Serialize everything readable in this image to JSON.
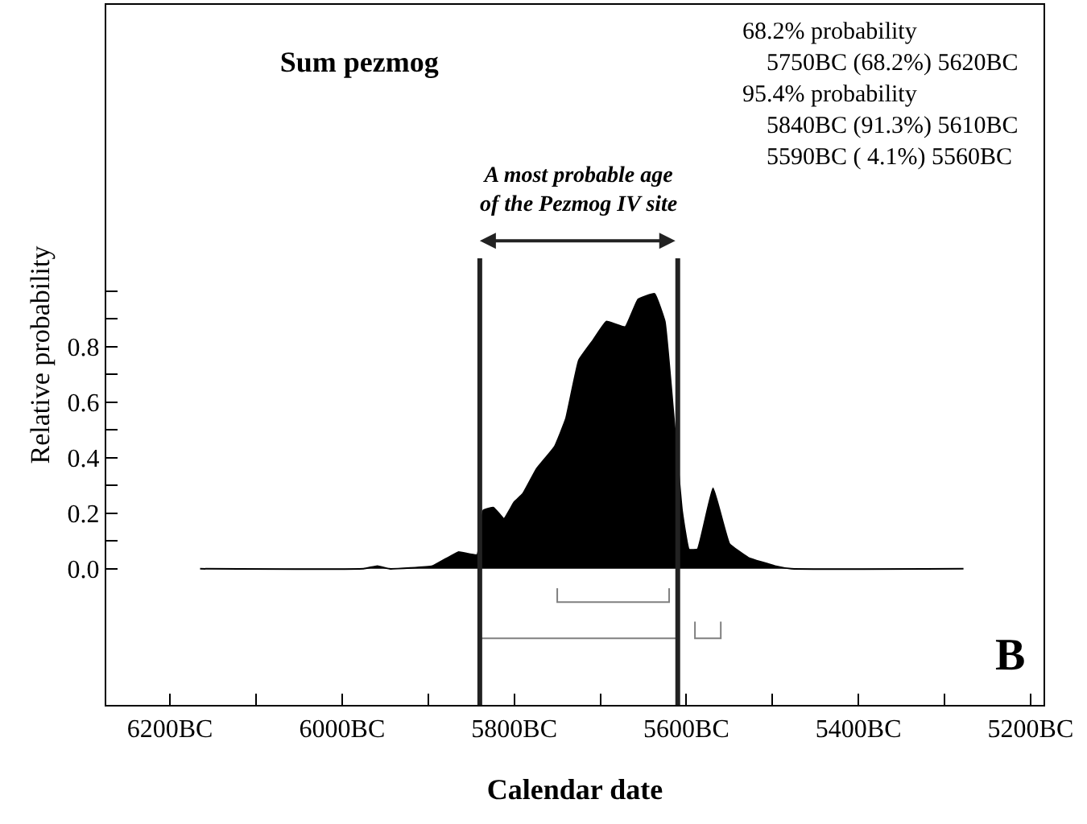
{
  "chart_data": {
    "type": "area",
    "title": "Sum pezmog",
    "xlabel": "Calendar date",
    "ylabel": "Relative probability",
    "xlim": [
      -6274,
      -5185
    ],
    "ylim": [
      -0.49,
      2.03
    ],
    "xticks": [
      {
        "value": -6200,
        "label": "6200BC"
      },
      {
        "value": -6100,
        "label": null
      },
      {
        "value": -6000,
        "label": "6000BC"
      },
      {
        "value": -5900,
        "label": null
      },
      {
        "value": -5800,
        "label": "5800BC"
      },
      {
        "value": -5700,
        "label": null
      },
      {
        "value": -5600,
        "label": "5600BC"
      },
      {
        "value": -5500,
        "label": null
      },
      {
        "value": -5400,
        "label": "5400BC"
      },
      {
        "value": -5300,
        "label": null
      },
      {
        "value": -5200,
        "label": "5200BC"
      }
    ],
    "yticks": [
      {
        "value": 0,
        "label": "0.0"
      },
      {
        "value": 0.1,
        "label": null
      },
      {
        "value": 0.2,
        "label": "0.2"
      },
      {
        "value": 0.3,
        "label": null
      },
      {
        "value": 0.4,
        "label": "0.4"
      },
      {
        "value": 0.5,
        "label": null
      },
      {
        "value": 0.6,
        "label": "0.6"
      },
      {
        "value": 0.7,
        "label": null
      },
      {
        "value": 0.8,
        "label": "0.8"
      },
      {
        "value": 0.9,
        "label": null
      },
      {
        "value": 1.0,
        "label": null
      }
    ],
    "series": [
      {
        "color": "#000000",
        "x": [
          -6165,
          -5975,
          -5959,
          -5945,
          -5895,
          -5865,
          -5843,
          -5836,
          -5824,
          -5812,
          -5800,
          -5790,
          -5774,
          -5753,
          -5740,
          -5725,
          -5709,
          -5693,
          -5671,
          -5656,
          -5637,
          -5625,
          -5615,
          -5605,
          -5597,
          -5587,
          -5569,
          -5550,
          -5528,
          -5497,
          -5478,
          -5278
        ],
        "values": [
          0,
          0,
          0.01,
          0,
          0.01,
          0.06,
          0.05,
          0.21,
          0.22,
          0.18,
          0.24,
          0.27,
          0.36,
          0.44,
          0.54,
          0.75,
          0.82,
          0.89,
          0.87,
          0.97,
          0.99,
          0.89,
          0.56,
          0.21,
          0.07,
          0.07,
          0.29,
          0.09,
          0.04,
          0.01,
          0,
          0
        ]
      },
      {
        "type": "line",
        "color": "#808080",
        "x": [
          -5750,
          -5750,
          -5620,
          -5620
        ],
        "values": [
          -0.07,
          -0.12,
          -0.12,
          -0.07
        ]
      },
      {
        "type": "line",
        "color": "#808080",
        "x": [
          -5840,
          -5610
        ],
        "values": [
          -0.25,
          -0.25
        ]
      },
      {
        "type": "line",
        "color": "#808080",
        "x": [
          -5590,
          -5590,
          -5560,
          -5560
        ],
        "values": [
          -0.19,
          -0.25,
          -0.25,
          -0.19
        ]
      }
    ],
    "ref_lines": [
      {
        "axis": "x",
        "value": -5840,
        "color": "#222222"
      },
      {
        "axis": "x",
        "value": -5610,
        "color": "#222222"
      }
    ],
    "annotations": [
      "A most probable age\nof the Pezmog IV site",
      "68.2% probability\n  5750BC (68.2%) 5620BC\n95.4% probability\n  5840BC (91.3%) 5610BC\n  5590BC ( 4.1%) 5560BC",
      "B"
    ],
    "grid": false,
    "marker": "none",
    "line_style": "solid"
  }
}
